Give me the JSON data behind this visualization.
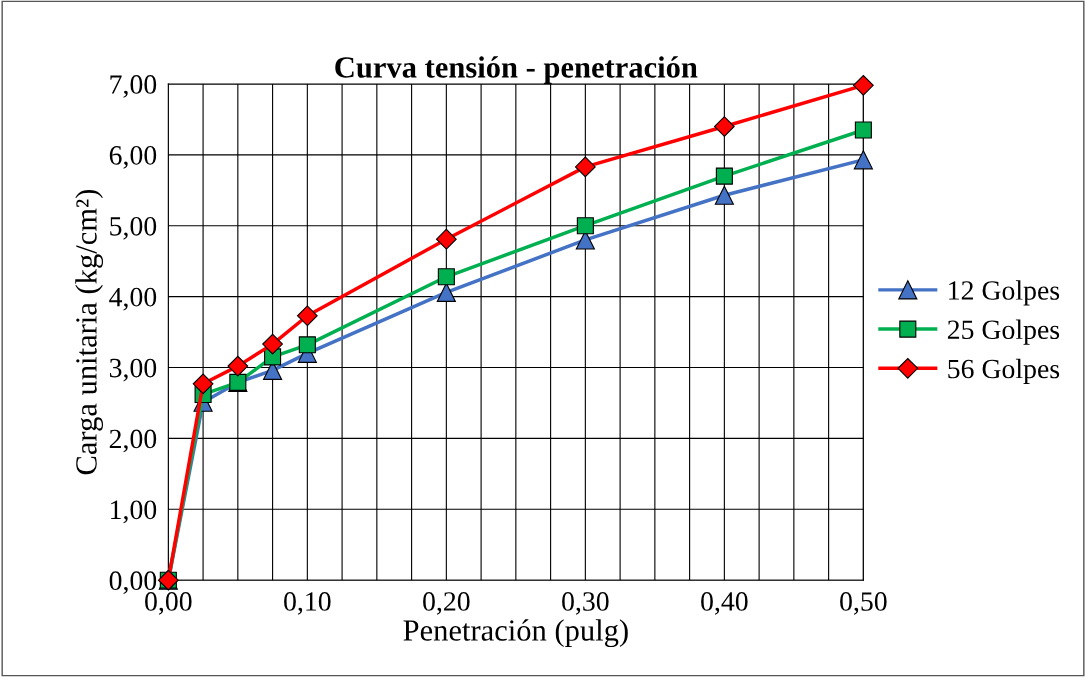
{
  "chart_data": {
    "type": "line",
    "title": "Curva tensión - penetración",
    "xlabel": "Penetración (pulg)",
    "ylabel": "Carga unitaria (kg/cm²)",
    "x": [
      0,
      0.025,
      0.05,
      0.075,
      0.1,
      0.2,
      0.3,
      0.4,
      0.5
    ],
    "series": [
      {
        "name": "12 Golpes",
        "color": "#4472c4",
        "marker": "triangle",
        "values": [
          0,
          2.51,
          2.79,
          2.96,
          3.2,
          4.06,
          4.8,
          5.43,
          5.93
        ]
      },
      {
        "name": "25 Golpes",
        "color": "#00b050",
        "marker": "square",
        "values": [
          0,
          2.62,
          2.79,
          3.15,
          3.32,
          4.28,
          5.0,
          5.7,
          6.35
        ]
      },
      {
        "name": "56 Golpes",
        "color": "#ff0000",
        "marker": "diamond",
        "values": [
          0,
          2.77,
          3.02,
          3.33,
          3.73,
          4.81,
          5.83,
          6.4,
          6.98
        ]
      }
    ],
    "xlim": [
      0,
      0.5
    ],
    "ylim": [
      0,
      7
    ],
    "xticks": [
      {
        "value": 0,
        "label": "0,00"
      },
      {
        "value": 0.025,
        "label": null
      },
      {
        "value": 0.05,
        "label": null
      },
      {
        "value": 0.075,
        "label": null
      },
      {
        "value": 0.1,
        "label": "0,10"
      },
      {
        "value": 0.125,
        "label": null
      },
      {
        "value": 0.15,
        "label": null
      },
      {
        "value": 0.175,
        "label": null
      },
      {
        "value": 0.2,
        "label": "0,20"
      },
      {
        "value": 0.225,
        "label": null
      },
      {
        "value": 0.25,
        "label": null
      },
      {
        "value": 0.275,
        "label": null
      },
      {
        "value": 0.3,
        "label": "0,30"
      },
      {
        "value": 0.325,
        "label": null
      },
      {
        "value": 0.35,
        "label": null
      },
      {
        "value": 0.375,
        "label": null
      },
      {
        "value": 0.4,
        "label": "0,40"
      },
      {
        "value": 0.425,
        "label": null
      },
      {
        "value": 0.45,
        "label": null
      },
      {
        "value": 0.475,
        "label": null
      },
      {
        "value": 0.5,
        "label": "0,50"
      }
    ],
    "yticks": [
      {
        "value": 0,
        "label": "0,00"
      },
      {
        "value": 1,
        "label": "1,00"
      },
      {
        "value": 2,
        "label": "2,00"
      },
      {
        "value": 3,
        "label": "3,00"
      },
      {
        "value": 4,
        "label": "4,00"
      },
      {
        "value": 5,
        "label": "5,00"
      },
      {
        "value": 6,
        "label": "6,00"
      },
      {
        "value": 7,
        "label": "7,00"
      }
    ],
    "grid": true,
    "legend": "right",
    "line_style": "solid"
  }
}
